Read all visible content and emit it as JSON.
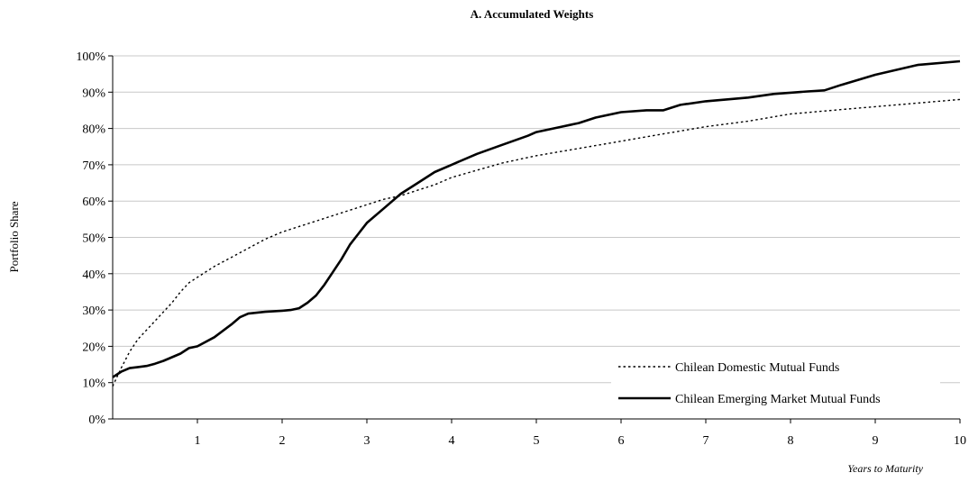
{
  "chart_data": {
    "type": "line",
    "title": "A. Accumulated Weights",
    "xlabel": "Years to Maturity",
    "ylabel": "Portfolio Share",
    "xlim": [
      0,
      10
    ],
    "ylim": [
      0,
      100
    ],
    "x_ticks": [
      "1",
      "2",
      "3",
      "4",
      "5",
      "6",
      "7",
      "8",
      "9",
      "10"
    ],
    "y_ticks": [
      "0%",
      "10%",
      "20%",
      "30%",
      "40%",
      "50%",
      "60%",
      "70%",
      "80%",
      "90%",
      "100%"
    ],
    "grid": "horizontal",
    "legend_position": "bottom-right",
    "series": [
      {
        "name": "Chilean Domestic Mutual Funds",
        "style": "dotted",
        "color": "#000000",
        "x": [
          0,
          0.1,
          0.2,
          0.3,
          0.4,
          0.5,
          0.6,
          0.7,
          0.8,
          0.9,
          1.0,
          1.2,
          1.4,
          1.6,
          1.8,
          2.0,
          2.2,
          2.4,
          2.6,
          2.8,
          3.0,
          3.2,
          3.4,
          3.6,
          3.8,
          4.0,
          4.3,
          4.6,
          5.0,
          5.5,
          6.0,
          6.5,
          7.0,
          7.5,
          8.0,
          8.5,
          9.0,
          9.5,
          10.0
        ],
        "y": [
          9,
          14,
          18.5,
          22,
          24.5,
          27,
          29.5,
          32,
          35,
          37.5,
          39,
          42,
          44.5,
          47,
          49.5,
          51.5,
          53,
          54.5,
          56,
          57.5,
          59,
          60.5,
          61.5,
          63,
          64.5,
          66.5,
          68.5,
          70.5,
          72.5,
          74.5,
          76.5,
          78.5,
          80.5,
          82,
          84,
          85,
          86,
          87,
          88
        ]
      },
      {
        "name": "Chilean Emerging Market Mutual Funds",
        "style": "solid",
        "color": "#000000",
        "x": [
          0,
          0.1,
          0.2,
          0.3,
          0.4,
          0.5,
          0.6,
          0.7,
          0.8,
          0.9,
          1.0,
          1.2,
          1.4,
          1.5,
          1.6,
          1.8,
          2.0,
          2.1,
          2.2,
          2.3,
          2.4,
          2.5,
          2.6,
          2.7,
          2.8,
          2.9,
          3.0,
          3.2,
          3.4,
          3.6,
          3.8,
          4.0,
          4.3,
          4.6,
          4.9,
          5.0,
          5.3,
          5.5,
          5.7,
          6.0,
          6.3,
          6.5,
          6.7,
          7.0,
          7.5,
          7.8,
          8.2,
          8.4,
          8.6,
          9.0,
          9.5,
          10.0
        ],
        "y": [
          11.5,
          13,
          14,
          14.3,
          14.6,
          15.2,
          16,
          17,
          18,
          19.5,
          20,
          22.5,
          26,
          28,
          29,
          29.5,
          29.8,
          30,
          30.5,
          32,
          34,
          37,
          40.5,
          44,
          48,
          51,
          54,
          58,
          62,
          65,
          68,
          70,
          73,
          75.5,
          78,
          79,
          80.5,
          81.5,
          83,
          84.5,
          85,
          85,
          86.5,
          87.5,
          88.5,
          89.5,
          90.2,
          90.5,
          92,
          94.8,
          97.5,
          98.5
        ]
      }
    ]
  }
}
